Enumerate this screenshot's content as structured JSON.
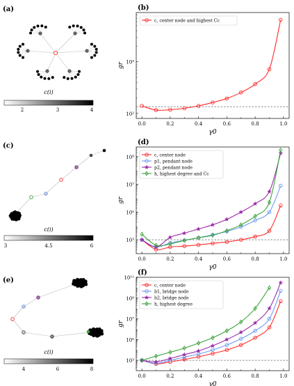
{
  "figure": {
    "rows": [
      {
        "network_label": "(a)",
        "colorbar": {
          "label": "c(i)",
          "ticks": [
            "2",
            "3",
            "4"
          ],
          "min": 2,
          "max": 4
        },
        "chart_label": "(b)"
      },
      {
        "network_label": "(c)",
        "colorbar": {
          "label": "c(i)",
          "ticks": [
            "3",
            "4.5",
            "6"
          ],
          "min": 3,
          "max": 6
        },
        "chart_label": "(d)"
      },
      {
        "network_label": "(e)",
        "colorbar": {
          "label": "c(i)",
          "ticks": [
            "4",
            "6",
            "8"
          ],
          "min": 4,
          "max": 8
        },
        "chart_label": "(f)"
      }
    ]
  },
  "chart_data": [
    {
      "type": "line",
      "panel": "(b)",
      "xlabel": "γ0",
      "ylabel": "gr",
      "yscale": "log",
      "xlim": [
        -0.04,
        1.04
      ],
      "ylim": [
        80,
        9000
      ],
      "xticks": [
        "0.0",
        "0.2",
        "0.4",
        "0.6",
        "0.8",
        "1.0"
      ],
      "yticks": [
        {
          "v": 100,
          "label": "10²"
        },
        {
          "v": 1000,
          "label": "10³"
        }
      ],
      "legend": "top-left",
      "dashed_line": 135,
      "series": [
        {
          "name": "c, center node and highest Cc",
          "color": "#ff2a2a",
          "marker": "circle",
          "x": [
            0,
            0.1,
            0.2,
            0.3,
            0.4,
            0.5,
            0.6,
            0.7,
            0.8,
            0.9,
            0.98
          ],
          "y": [
            140,
            116,
            118,
            126,
            140,
            163,
            195,
            255,
            370,
            720,
            6500
          ]
        }
      ]
    },
    {
      "type": "line",
      "panel": "(d)",
      "xlabel": "γ0",
      "ylabel": "gr",
      "yscale": "log",
      "xlim": [
        -0.04,
        1.04
      ],
      "ylim": [
        100,
        5000000000
      ],
      "xticks": [
        "0.0",
        "0.2",
        "0.4",
        "0.6",
        "0.8",
        "1.0"
      ],
      "yticks": [
        {
          "v": 1000,
          "label": "10³"
        },
        {
          "v": 100000,
          "label": "10⁵"
        },
        {
          "v": 10000000,
          "label": "10⁷"
        },
        {
          "v": 1000000000,
          "label": "10⁹"
        }
      ],
      "legend": "top-left",
      "dashed_line": 1000,
      "series": [
        {
          "name": "c, center node",
          "color": "#ff2a2a",
          "marker": "circle",
          "x": [
            0,
            0.1,
            0.2,
            0.3,
            0.4,
            0.5,
            0.6,
            0.7,
            0.8,
            0.9,
            0.98
          ],
          "y": [
            1000,
            200,
            300,
            350,
            430,
            550,
            700,
            1000,
            1700,
            4500,
            300000
          ]
        },
        {
          "name": "p1, pendant node",
          "color": "#6f9bf2",
          "marker": "circle",
          "x": [
            0,
            0.1,
            0.2,
            0.3,
            0.4,
            0.5,
            0.6,
            0.7,
            0.8,
            0.9,
            0.98
          ],
          "y": [
            1000,
            300,
            600,
            900,
            1400,
            2300,
            4000,
            8500,
            25000,
            100000,
            8000000
          ]
        },
        {
          "name": "p2, pendant node",
          "color": "#9a2ba8",
          "marker": "star",
          "x": [
            0,
            0.1,
            0.2,
            0.3,
            0.4,
            0.5,
            0.6,
            0.7,
            0.8,
            0.9,
            0.98
          ],
          "y": [
            1000,
            300,
            1500,
            3000,
            6000,
            12000,
            30000,
            100000,
            400000,
            3000000,
            1800000000
          ]
        },
        {
          "name": "h, highest degree and Cc",
          "color": "#3aa33a",
          "marker": "diamond",
          "x": [
            0,
            0.1,
            0.2,
            0.3,
            0.4,
            0.5,
            0.6,
            0.7,
            0.8,
            0.9,
            0.98
          ],
          "y": [
            2500,
            400,
            500,
            900,
            1400,
            2100,
            4500,
            12000,
            50000,
            500000,
            3000000000
          ]
        }
      ]
    },
    {
      "type": "line",
      "panel": "(f)",
      "xlabel": "γ0",
      "ylabel": "gr",
      "yscale": "log",
      "xlim": [
        -0.04,
        1.04
      ],
      "ylim": [
        100,
        100000000000
      ],
      "xticks": [
        "0.0",
        "0.2",
        "0.4",
        "0.6",
        "0.8",
        "1.0"
      ],
      "yticks": [
        {
          "v": 1000,
          "label": "10³"
        },
        {
          "v": 100000,
          "label": "10⁵"
        },
        {
          "v": 10000000,
          "label": "10⁷"
        },
        {
          "v": 1000000000,
          "label": "10⁹"
        },
        {
          "v": 100000000000,
          "label": "10¹¹"
        }
      ],
      "legend": "top-left",
      "dashed_line": 1000,
      "series": [
        {
          "name": "c, center node",
          "color": "#ff2a2a",
          "marker": "circle",
          "x": [
            0,
            0.1,
            0.2,
            0.3,
            0.4,
            0.5,
            0.6,
            0.7,
            0.8,
            0.9,
            0.98
          ],
          "y": [
            1000,
            450,
            700,
            1200,
            2200,
            4500,
            10000,
            30000,
            150000,
            1500000,
            500000000
          ]
        },
        {
          "name": "b1, bridge node",
          "color": "#6f9bf2",
          "marker": "circle",
          "x": [
            0,
            0.1,
            0.2,
            0.3,
            0.4,
            0.5,
            0.6,
            0.7,
            0.8,
            0.9,
            0.98
          ],
          "y": [
            1000,
            500,
            1000,
            2000,
            4000,
            10000,
            30000,
            120000,
            700000,
            10000000,
            5000000000
          ]
        },
        {
          "name": "b2, bridge node",
          "color": "#9a2ba8",
          "marker": "star",
          "x": [
            0,
            0.1,
            0.2,
            0.3,
            0.4,
            0.5,
            0.6,
            0.7,
            0.8,
            0.9,
            0.98
          ],
          "y": [
            1000,
            700,
            1500,
            3500,
            8000,
            25000,
            100000,
            500000,
            4000000,
            100000000,
            30000000000
          ]
        },
        {
          "name": "h, highest degree",
          "color": "#3aa33a",
          "marker": "diamond",
          "x": [
            0,
            0.1,
            0.2,
            0.3,
            0.4,
            0.5,
            0.6,
            0.7,
            0.8,
            0.9
          ],
          "y": [
            1000,
            2500,
            6000,
            15000,
            45000,
            150000,
            700000,
            5000000,
            100000000,
            10000000000
          ]
        }
      ]
    }
  ]
}
